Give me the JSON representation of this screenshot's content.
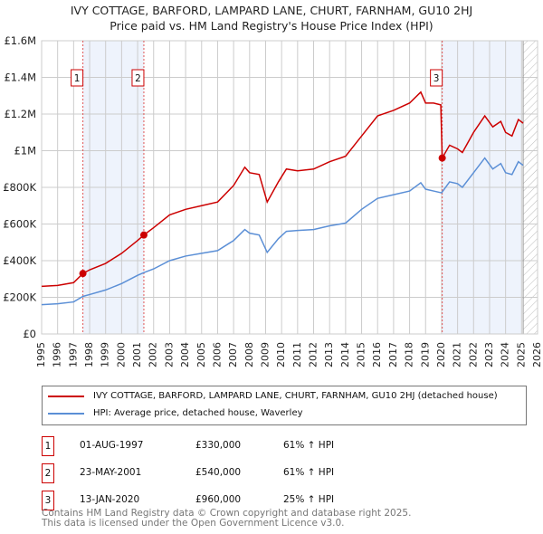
{
  "chart_data": {
    "type": "line",
    "title": "IVY COTTAGE, BARFORD, LAMPARD LANE, CHURT, FARNHAM, GU10 2HJ",
    "subtitle": "Price paid vs. HM Land Registry's House Price Index (HPI)",
    "xlim": [
      1995,
      2026
    ],
    "ylim": [
      0,
      1600000
    ],
    "x_ticks": [
      "1995",
      "1996",
      "1997",
      "1998",
      "1999",
      "2000",
      "2001",
      "2002",
      "2003",
      "2004",
      "2005",
      "2006",
      "2007",
      "2008",
      "2009",
      "2010",
      "2011",
      "2012",
      "2013",
      "2014",
      "2015",
      "2016",
      "2017",
      "2018",
      "2019",
      "2020",
      "2021",
      "2022",
      "2023",
      "2024",
      "2025",
      "2026"
    ],
    "y_ticks": [
      {
        "v": 0,
        "label": "£0"
      },
      {
        "v": 200000,
        "label": "£200K"
      },
      {
        "v": 400000,
        "label": "£400K"
      },
      {
        "v": 600000,
        "label": "£600K"
      },
      {
        "v": 800000,
        "label": "£800K"
      },
      {
        "v": 1000000,
        "label": "£1M"
      },
      {
        "v": 1200000,
        "label": "£1.2M"
      },
      {
        "v": 1400000,
        "label": "£1.4M"
      },
      {
        "v": 1600000,
        "label": "£1.6M"
      }
    ],
    "grid": true,
    "shaded_ranges": [
      [
        1997.58,
        2001.39
      ],
      [
        2020.04,
        2025.0
      ]
    ],
    "hatched_from": 2025.1,
    "series": [
      {
        "name": "IVY COTTAGE, BARFORD, LAMPARD LANE, CHURT, FARNHAM, GU10 2HJ (detached house)",
        "color": "#cc0000",
        "x": [
          1995,
          1996,
          1997,
          1997.58,
          1998,
          1999,
          2000,
          2001,
          2001.39,
          2002,
          2003,
          2004,
          2005,
          2006,
          2007,
          2007.7,
          2008,
          2008.6,
          2009.1,
          2009.8,
          2010.3,
          2011,
          2012,
          2013,
          2014,
          2015,
          2016,
          2017,
          2018,
          2018.7,
          2019,
          2019.5,
          2019.95,
          2020.04,
          2020.5,
          2021,
          2021.3,
          2022,
          2022.7,
          2023.2,
          2023.7,
          2024,
          2024.4,
          2024.8,
          2025.1
        ],
        "y": [
          260000,
          265000,
          280000,
          330000,
          350000,
          385000,
          440000,
          510000,
          540000,
          580000,
          650000,
          680000,
          700000,
          720000,
          810000,
          910000,
          880000,
          870000,
          720000,
          830000,
          900000,
          890000,
          900000,
          940000,
          970000,
          1080000,
          1190000,
          1220000,
          1260000,
          1320000,
          1260000,
          1260000,
          1250000,
          960000,
          1030000,
          1010000,
          990000,
          1100000,
          1190000,
          1130000,
          1160000,
          1100000,
          1080000,
          1170000,
          1150000
        ]
      },
      {
        "name": "HPI: Average price, detached house, Waverley",
        "color": "#5b8fd6",
        "x": [
          1995,
          1996,
          1997,
          1997.58,
          1998,
          1999,
          2000,
          2001,
          2001.39,
          2002,
          2003,
          2004,
          2005,
          2006,
          2007,
          2007.7,
          2008,
          2008.6,
          2009.1,
          2009.8,
          2010.3,
          2011,
          2012,
          2013,
          2014,
          2015,
          2016,
          2017,
          2018,
          2018.7,
          2019,
          2019.5,
          2020,
          2020.5,
          2021,
          2021.3,
          2022,
          2022.7,
          2023.2,
          2023.7,
          2024,
          2024.4,
          2024.8,
          2025.1
        ],
        "y": [
          160000,
          165000,
          175000,
          205000,
          215000,
          240000,
          275000,
          320000,
          335000,
          355000,
          400000,
          425000,
          440000,
          455000,
          510000,
          570000,
          550000,
          540000,
          445000,
          520000,
          560000,
          565000,
          570000,
          590000,
          605000,
          680000,
          740000,
          760000,
          780000,
          825000,
          790000,
          780000,
          770000,
          830000,
          820000,
          800000,
          880000,
          960000,
          900000,
          930000,
          880000,
          870000,
          940000,
          920000
        ]
      }
    ],
    "sales": [
      {
        "n": "1",
        "x": 1997.58,
        "y": 330000,
        "date": "01-AUG-1997",
        "price": "£330,000",
        "hpi": "61% ↑ HPI"
      },
      {
        "n": "2",
        "x": 2001.39,
        "y": 540000,
        "date": "23-MAY-2001",
        "price": "£540,000",
        "hpi": "61% ↑ HPI"
      },
      {
        "n": "3",
        "x": 2020.04,
        "y": 960000,
        "date": "13-JAN-2020",
        "price": "£960,000",
        "hpi": "25% ↑ HPI"
      }
    ],
    "legend_position": "below"
  },
  "footer": {
    "line1": "Contains HM Land Registry data © Crown copyright and database right 2025.",
    "line2": "This data is licensed under the Open Government Licence v3.0."
  }
}
